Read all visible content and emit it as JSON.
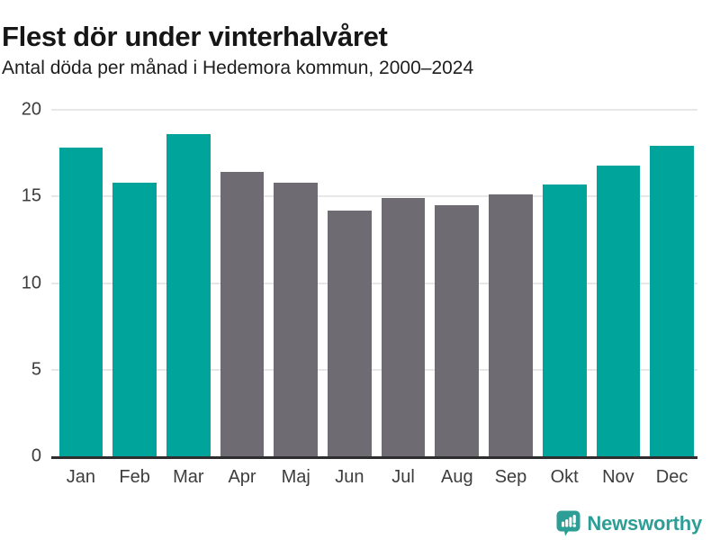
{
  "header": {
    "title": "Flest dör under vinterhalvåret",
    "subtitle": "Antal döda per månad i Hedemora kommun, 2000–2024"
  },
  "chart_data": {
    "type": "bar",
    "title": "Flest dör under vinterhalvåret",
    "subtitle": "Antal döda per månad i Hedemora kommun, 2000–2024",
    "categories": [
      "Jan",
      "Feb",
      "Mar",
      "Apr",
      "Maj",
      "Jun",
      "Jul",
      "Aug",
      "Sep",
      "Okt",
      "Nov",
      "Dec"
    ],
    "values": [
      17.8,
      15.8,
      18.6,
      16.4,
      15.8,
      14.2,
      14.9,
      14.5,
      15.1,
      15.7,
      16.8,
      17.9
    ],
    "bar_colors": [
      "teal",
      "teal",
      "teal",
      "gray",
      "gray",
      "gray",
      "gray",
      "gray",
      "gray",
      "teal",
      "teal",
      "teal"
    ],
    "colors": {
      "teal": "#00A49B",
      "gray": "#6E6C72"
    },
    "xlabel": "",
    "ylabel": "",
    "ylim": [
      0,
      20
    ],
    "yticks": [
      0,
      5,
      10,
      15,
      20
    ],
    "grid": "horizontal gridlines at 5,10,15,20; dark baseline at 0",
    "legend": "none",
    "highlight_meaning": "teal = winter half-year months, gray = summer half-year months"
  },
  "footer": {
    "brand": "Newsworthy",
    "brand_color": "#2D9E96",
    "logo_icon": "bar-chart-speech-bubble"
  }
}
